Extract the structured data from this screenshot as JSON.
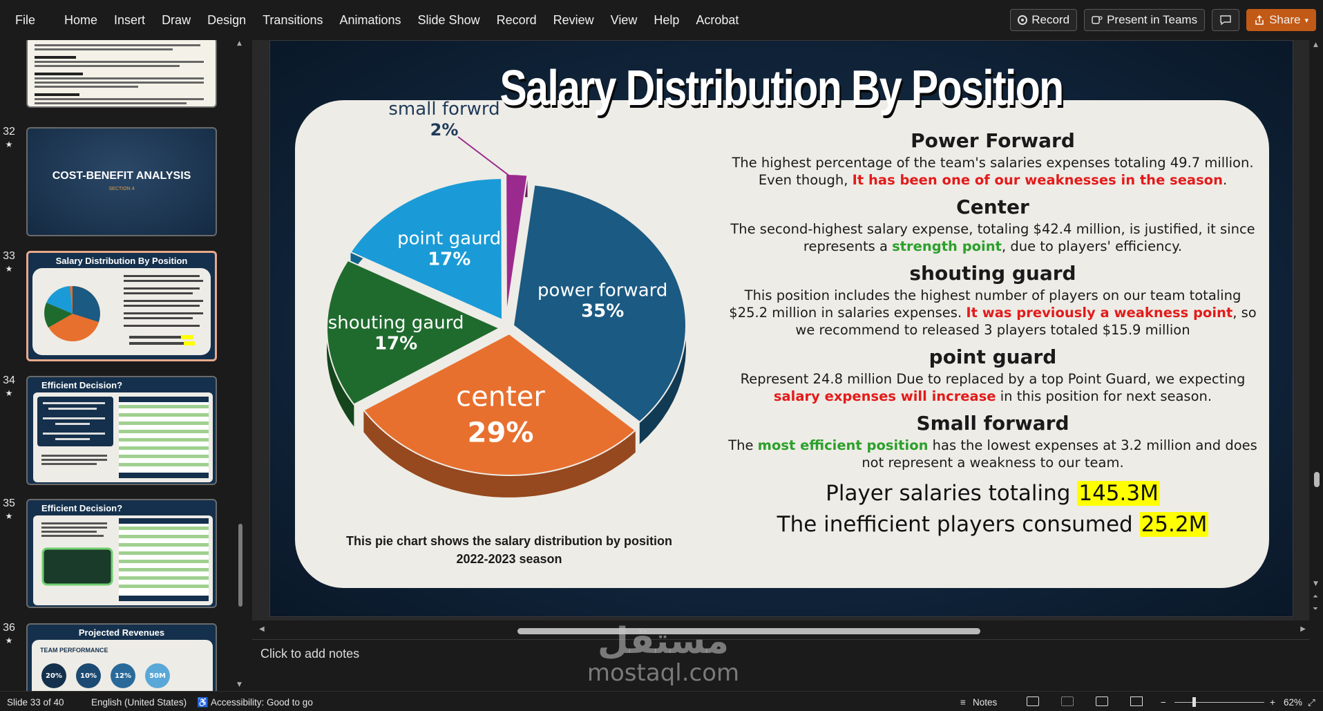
{
  "menu": {
    "items": [
      "File",
      "Home",
      "Insert",
      "Draw",
      "Design",
      "Transitions",
      "Animations",
      "Slide Show",
      "Record",
      "Review",
      "View",
      "Help",
      "Acrobat"
    ],
    "record_btn": "Record",
    "present_btn": "Present in Teams",
    "share_btn": "Share"
  },
  "thumbnails": {
    "numbers": [
      "32",
      "33",
      "34",
      "35",
      "36"
    ],
    "t32_title": "COST-BENEFIT ANALYSIS",
    "t32_sub": "SECTION 4",
    "t33_title": "Salary Distribution By Position",
    "t34_title": "Efficient Decision?",
    "t35_title": "Efficient Decision?",
    "t36_title": "Projected Revenues",
    "t36_sub": "TEAM PERFORMANCE",
    "t36_circles": [
      "20%",
      "10%",
      "12%",
      "50M"
    ]
  },
  "slide": {
    "title": "Salary Distribution By Position",
    "caption_line1": "This pie chart shows the salary distribution by position",
    "caption_line2": "2022-2023 season",
    "sections": {
      "pf_title": "Power Forward",
      "pf_text1": "The highest percentage of the team's salaries expenses totaling 49.7 million. Even though, ",
      "pf_red": "It has been one of our weaknesses in the season",
      "pf_text2": ".",
      "c_title": "Center",
      "c_text1": "The second-highest salary expense, totaling $42.4 million, is justified, it since represents a ",
      "c_green": "strength point",
      "c_text2": ", due to players' efficiency.",
      "sg_title": "shouting guard",
      "sg_text1": "This position includes the highest number of players on our team totaling $25.2 million in salaries expenses. ",
      "sg_red": "It was previously a weakness point",
      "sg_text2": ", so we recommend to released 3 players totaled $15.9 million",
      "pg_title": "point guard",
      "pg_text1": "Represent 24.8 million Due to replaced by a top Point Guard, we expecting ",
      "pg_red": "salary expenses will increase",
      "pg_text2": " in this position for next season.",
      "sf_title": "Small forward",
      "sf_text1": "The ",
      "sf_green": "most efficient position",
      "sf_text2": " has the lowest expenses at 3.2 million and does not represent a weakness to our team."
    },
    "total1_label": "Player salaries totaling ",
    "total1_value": "145.3M",
    "total2_label": "The inefficient players consumed ",
    "total2_value": "25.2M"
  },
  "chart_data": {
    "type": "pie",
    "title": "",
    "categories": [
      "power forward",
      "center",
      "shouting gaurd",
      "point gaurd",
      "small forwrd"
    ],
    "values": [
      35,
      29,
      17,
      17,
      2
    ],
    "labels": [
      "35%",
      "29%",
      "17%",
      "17%",
      "2%"
    ],
    "colors": [
      "#1b5a82",
      "#e8702f",
      "#1f6b2e",
      "#1a9bd7",
      "#9b2a8f"
    ]
  },
  "notes": {
    "placeholder": "Click to add notes"
  },
  "watermark": {
    "arabic": "مستقل",
    "latin": "mostaql.com"
  },
  "status": {
    "slide": "Slide 33 of 40",
    "language": "English (United States)",
    "accessibility": "Accessibility: Good to go",
    "notes": "Notes",
    "zoom": "62%"
  }
}
